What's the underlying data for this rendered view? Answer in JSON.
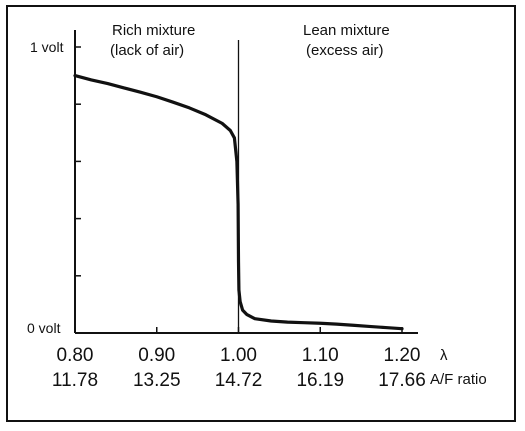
{
  "chart_data": {
    "type": "line",
    "title": "",
    "xlabel": "λ",
    "x2label": "A/F ratio",
    "ylabel": "",
    "y_tick_labels": [
      "1 volt",
      "0 volt"
    ],
    "xlim": [
      0.8,
      1.2
    ],
    "ylim": [
      0,
      1
    ],
    "x_ticks": [
      0.8,
      0.9,
      1.0,
      1.1,
      1.2
    ],
    "x_tick_labels": [
      "0.80",
      "0.90",
      "1.00",
      "1.10",
      "1.20"
    ],
    "x2_tick_labels": [
      "11.78",
      "13.25",
      "14.72",
      "16.19",
      "17.66"
    ],
    "y_ticks": [
      0,
      0.2,
      0.4,
      0.6,
      0.8,
      1.0
    ],
    "annotations": [
      {
        "line1": "Rich mixture",
        "line2": "(lack of air)"
      },
      {
        "line1": "Lean mixture",
        "line2": "(excess air)"
      }
    ],
    "vertical_line_x": 1.0,
    "grid": false,
    "series": [
      {
        "x": [
          0.8,
          0.82,
          0.84,
          0.86,
          0.88,
          0.9,
          0.92,
          0.94,
          0.96,
          0.98,
          0.99,
          0.995,
          0.998,
          0.9995,
          1.0,
          1.0005,
          1.002,
          1.005,
          1.01,
          1.02,
          1.04,
          1.06,
          1.08,
          1.1,
          1.12,
          1.14,
          1.16,
          1.18,
          1.2
        ],
        "y": [
          0.9,
          0.885,
          0.872,
          0.857,
          0.842,
          0.826,
          0.807,
          0.787,
          0.763,
          0.733,
          0.708,
          0.682,
          0.6,
          0.45,
          0.25,
          0.15,
          0.11,
          0.08,
          0.065,
          0.05,
          0.042,
          0.038,
          0.036,
          0.034,
          0.031,
          0.027,
          0.023,
          0.019,
          0.015
        ]
      }
    ]
  }
}
